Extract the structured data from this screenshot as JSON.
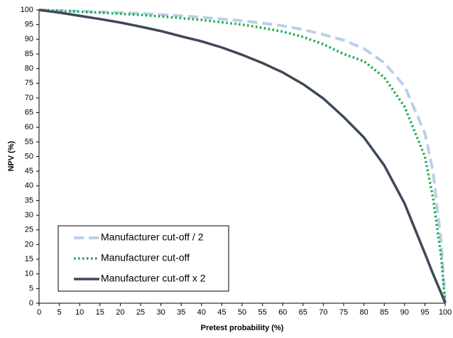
{
  "chart_data": {
    "type": "line",
    "x_label": "Pretest probability (%)",
    "y_label": "NPV (%)",
    "x": [
      0,
      5,
      10,
      15,
      20,
      25,
      30,
      35,
      40,
      45,
      50,
      55,
      60,
      65,
      70,
      75,
      80,
      85,
      90,
      95,
      97,
      99,
      100
    ],
    "series": [
      {
        "name": "Manufacturer cut-off / 2",
        "color": "#b9d0ea",
        "style": "dashed",
        "values": [
          100,
          99.8,
          99.6,
          99.3,
          99.1,
          98.8,
          98.4,
          98.0,
          97.5,
          96.9,
          96.3,
          95.5,
          94.6,
          93.3,
          91.6,
          89.7,
          86.8,
          82,
          74,
          58,
          45,
          21,
          0
        ]
      },
      {
        "name": "Manufacturer cut-off",
        "color": "#1aab4a",
        "style": "dotted",
        "values": [
          100,
          99.7,
          99.4,
          99.1,
          98.7,
          98.3,
          97.8,
          97.2,
          96.6,
          95.8,
          95.0,
          93.9,
          92.6,
          90.8,
          88.3,
          85.0,
          82.5,
          77,
          67,
          50,
          36,
          16,
          0
        ]
      },
      {
        "name": "Manufacturer cut-off x 2",
        "color": "#3e4859",
        "style": "solid",
        "values": [
          100,
          99.1,
          98.0,
          96.9,
          95.7,
          94.3,
          92.8,
          91.0,
          89.3,
          87.2,
          84.7,
          81.9,
          78.7,
          74.7,
          69.8,
          63.5,
          56.5,
          47,
          34,
          17,
          10,
          3.5,
          0
        ]
      }
    ],
    "xlim": [
      0,
      100
    ],
    "ylim": [
      0,
      100
    ],
    "xticks": [
      0,
      5,
      10,
      15,
      20,
      25,
      30,
      35,
      40,
      45,
      50,
      55,
      60,
      65,
      70,
      75,
      80,
      85,
      90,
      95,
      100
    ],
    "yticks": [
      0,
      5,
      10,
      15,
      20,
      25,
      30,
      35,
      40,
      45,
      50,
      55,
      60,
      65,
      70,
      75,
      80,
      85,
      90,
      95,
      100
    ],
    "grid": false,
    "legend": "lower left"
  }
}
